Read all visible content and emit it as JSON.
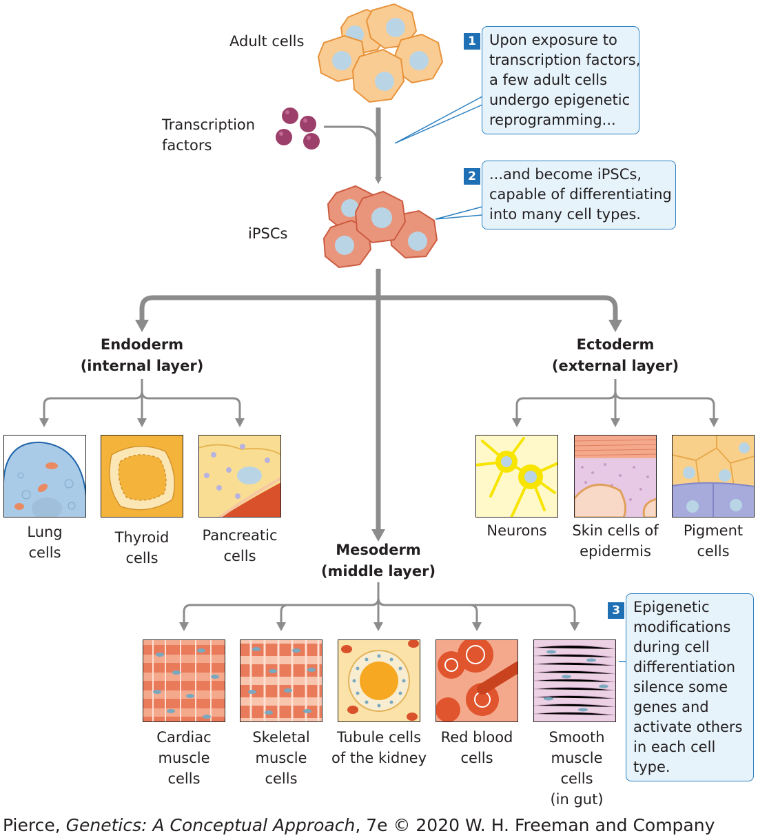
{
  "labels": {
    "adult_cells": "Adult cells",
    "transcription_factors": [
      "Transcription",
      "factors"
    ],
    "ipscs": "iPSCs"
  },
  "callouts": [
    {
      "number": "1",
      "lines": [
        "Upon exposure to",
        "transcription factors,",
        "a few adult cells",
        "undergo epigenetic",
        "reprogramming..."
      ]
    },
    {
      "number": "2",
      "lines": [
        "...and become iPSCs,",
        "capable of differentiating",
        "into many cell types."
      ]
    },
    {
      "number": "3",
      "lines": [
        "Epigenetic",
        "modifications",
        "during cell",
        "differentiation",
        "silence some",
        "genes and",
        "activate others",
        "in each cell",
        "type."
      ]
    }
  ],
  "layers": {
    "endoderm": {
      "title": "Endoderm",
      "subtitle": "(internal layer)",
      "cells": [
        {
          "label": [
            "Lung",
            "cells"
          ]
        },
        {
          "label": [
            "Thyroid",
            "cells"
          ]
        },
        {
          "label": [
            "Pancreatic",
            "cells"
          ]
        }
      ]
    },
    "ectoderm": {
      "title": "Ectoderm",
      "subtitle": "(external layer)",
      "cells": [
        {
          "label": [
            "Neurons"
          ]
        },
        {
          "label": [
            "Skin cells of",
            "epidermis"
          ]
        },
        {
          "label": [
            "Pigment",
            "cells"
          ]
        }
      ]
    },
    "mesoderm": {
      "title": "Mesoderm",
      "subtitle": "(middle layer)",
      "cells": [
        {
          "label": [
            "Cardiac",
            "muscle",
            "cells"
          ]
        },
        {
          "label": [
            "Skeletal",
            "muscle",
            "cells"
          ]
        },
        {
          "label": [
            "Tubule cells",
            "of the kidney"
          ]
        },
        {
          "label": [
            "Red blood",
            "cells"
          ]
        },
        {
          "label": [
            "Smooth",
            "muscle",
            "cells",
            "(in gut)"
          ]
        }
      ]
    }
  },
  "credit": {
    "prefix": "Pierce, ",
    "title": "Genetics: A Conceptual Approach",
    "suffix": ", 7e © 2020 W. H. Freeman and Company"
  },
  "colors": {
    "arrow": "#8c8c8c",
    "adult_cell": "#f9cc93",
    "adult_cell_edge": "#e8923a",
    "ipsc": "#e9957c",
    "ipsc_edge": "#cc5b3f",
    "nucleus": "#b9d5e5",
    "transcription_factor": "#9c3f6a",
    "callout_fill": "#e6f3fb",
    "callout_edge": "#2a7fc0",
    "badge": "#1f6fb5"
  }
}
